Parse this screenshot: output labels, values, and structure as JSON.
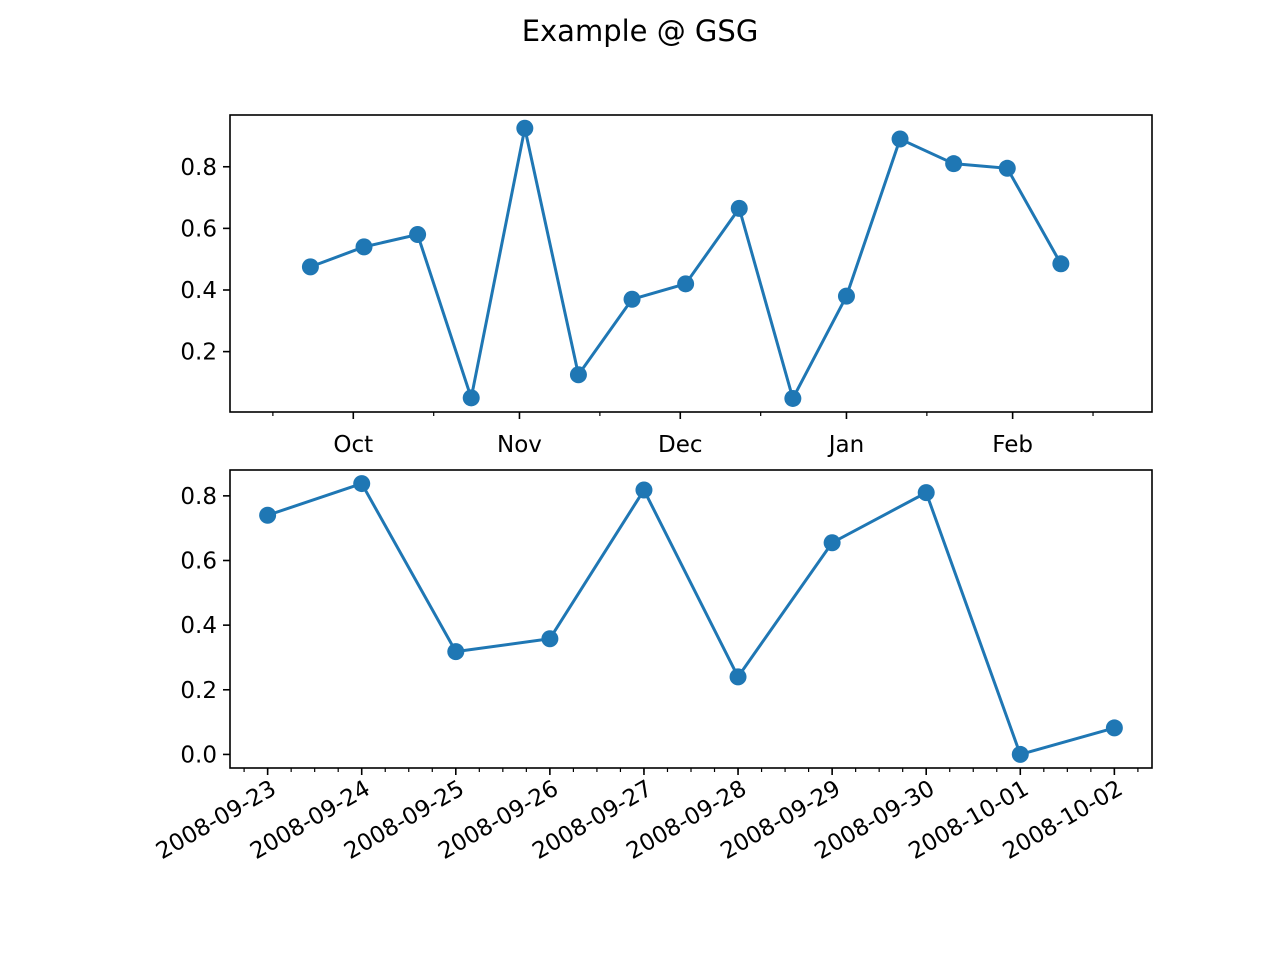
{
  "figure": {
    "title": "Example @ GSG"
  },
  "chart_data": [
    {
      "type": "line",
      "color": "#1f77b4",
      "marker": "circle",
      "x": [
        "2008-09-23",
        "2008-10-13",
        "2008-11-02",
        "2008-11-22",
        "2008-12-12",
        "2009-01-01"
      ],
      "x_ticks": [
        "2008-10-01",
        "2008-11-01",
        "2008-12-01",
        "2009-01-01",
        "2009-02-01"
      ],
      "x_tick_labels": [
        "Oct",
        "Nov",
        "Dec",
        "Jan",
        "Feb"
      ],
      "x_minor_ticks": [
        "2008-09-16",
        "2008-10-16",
        "2008-11-16",
        "2008-12-16",
        "2009-01-16",
        "2009-02-16"
      ],
      "xlim": [
        "2008-09-08",
        "2009-02-27"
      ],
      "points": [
        {
          "x": "2008-09-23",
          "y": 0.475
        },
        {
          "x": "2008-10-03",
          "y": 0.54
        },
        {
          "x": "2008-10-13",
          "y": 0.58
        },
        {
          "x": "2008-10-23",
          "y": 0.05
        },
        {
          "x": "2008-11-02",
          "y": 0.925
        },
        {
          "x": "2008-11-12",
          "y": 0.125
        },
        {
          "x": "2008-11-22",
          "y": 0.37
        },
        {
          "x": "2008-12-02",
          "y": 0.42
        },
        {
          "x": "2008-12-12",
          "y": 0.665
        },
        {
          "x": "2008-12-22",
          "y": 0.048
        },
        {
          "x": "2009-01-01",
          "y": 0.38
        },
        {
          "x": "2009-01-11",
          "y": 0.89
        },
        {
          "x": "2009-01-21",
          "y": 0.81
        },
        {
          "x": "2009-01-31",
          "y": 0.795
        },
        {
          "x": "2009-02-10",
          "y": 0.485
        }
      ],
      "y_ticks": [
        0.2,
        0.4,
        0.6,
        0.8
      ],
      "y_tick_labels": [
        "0.2",
        "0.4",
        "0.6",
        "0.8"
      ],
      "ylim": [
        0.004,
        0.968
      ],
      "grid": false
    },
    {
      "type": "line",
      "color": "#1f77b4",
      "marker": "circle",
      "x_ticks": [
        "2008-09-23",
        "2008-09-24",
        "2008-09-25",
        "2008-09-26",
        "2008-09-27",
        "2008-09-28",
        "2008-09-29",
        "2008-09-30",
        "2008-10-01",
        "2008-10-02"
      ],
      "x_tick_labels": [
        "2008-09-23",
        "2008-09-24",
        "2008-09-25",
        "2008-09-26",
        "2008-09-27",
        "2008-09-28",
        "2008-09-29",
        "2008-09-30",
        "2008-10-01",
        "2008-10-02"
      ],
      "x_minor_step_days": 0.25,
      "xlim": [
        "2008-09-22T14:24",
        "2008-10-02T09:36"
      ],
      "points": [
        {
          "x": "2008-09-23",
          "y": 0.74
        },
        {
          "x": "2008-09-24",
          "y": 0.838
        },
        {
          "x": "2008-09-25",
          "y": 0.318
        },
        {
          "x": "2008-09-26",
          "y": 0.358
        },
        {
          "x": "2008-09-27",
          "y": 0.818
        },
        {
          "x": "2008-09-28",
          "y": 0.24
        },
        {
          "x": "2008-09-29",
          "y": 0.655
        },
        {
          "x": "2008-09-30",
          "y": 0.81
        },
        {
          "x": "2008-10-01",
          "y": 0.0
        },
        {
          "x": "2008-10-02",
          "y": 0.082
        }
      ],
      "y_ticks": [
        0.0,
        0.2,
        0.4,
        0.6,
        0.8
      ],
      "y_tick_labels": [
        "0.0",
        "0.2",
        "0.4",
        "0.6",
        "0.8"
      ],
      "ylim": [
        -0.042,
        0.88
      ],
      "grid": false,
      "x_label_rotation": 30
    }
  ]
}
